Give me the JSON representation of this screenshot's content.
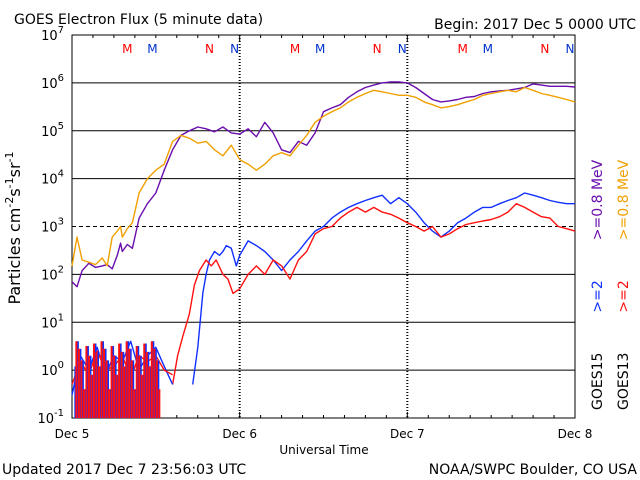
{
  "header": {
    "title": "GOES Electron Flux (5 minute data)",
    "begin": "Begin: 2017 Dec 5 0000 UTC"
  },
  "footer": {
    "updated": "Updated 2017 Dec  7 23:56:03 UTC",
    "credit": "NOAA/SWPC Boulder, CO USA"
  },
  "colors": {
    "goes15_2mev": "#1030ff",
    "goes13_2mev": "#ff1010",
    "goes15_08mev": "#6a0dad",
    "goes13_08mev": "#f0a000",
    "marker_m": "#ff0000",
    "marker_n": "#0033cc"
  },
  "chart_data": {
    "type": "line",
    "title": "GOES Electron Flux (5 minute data)",
    "xlabel": "Universal Time",
    "ylabel": "Particles cm-2s-1sr-1",
    "ylabel_parts": {
      "main": "Particles cm",
      "sup1": "-2",
      "mid1": "s",
      "sup2": "-1",
      "mid2": "sr",
      "sup3": "-1"
    },
    "yscale": "log",
    "ylim": [
      0.1,
      10000000
    ],
    "xlim": [
      0,
      3
    ],
    "x_unit": "days since 2017 Dec 5 0000 UTC",
    "y_ticks": [
      {
        "base": "10",
        "exp": "-1"
      },
      {
        "base": "10",
        "exp": "0"
      },
      {
        "base": "10",
        "exp": "1"
      },
      {
        "base": "10",
        "exp": "2"
      },
      {
        "base": "10",
        "exp": "3"
      },
      {
        "base": "10",
        "exp": "4"
      },
      {
        "base": "10",
        "exp": "5"
      },
      {
        "base": "10",
        "exp": "6"
      },
      {
        "base": "10",
        "exp": "7"
      }
    ],
    "x_tick_labels": [
      "Dec 5",
      "Dec 6",
      "Dec 7",
      "Dec 8"
    ],
    "dashed_threshold": 1000,
    "legend": {
      "group1": [
        {
          "text": ">=0.8  MeV",
          "color": "#6a0dad"
        },
        {
          "text": ">=2",
          "color": "#1030ff"
        },
        {
          "text": "GOES15",
          "color": "#000000"
        }
      ],
      "group2": [
        {
          "text": ">=0.8  MeV",
          "color": "#f0a000"
        },
        {
          "text": ">=2",
          "color": "#ff1010"
        },
        {
          "text": "GOES13",
          "color": "#000000"
        }
      ]
    },
    "markers": [
      {
        "label": "M",
        "x": 0.33,
        "sat": "GOES13"
      },
      {
        "label": "M",
        "x": 0.48,
        "sat": "GOES15"
      },
      {
        "label": "N",
        "x": 0.82,
        "sat": "GOES13"
      },
      {
        "label": "N",
        "x": 0.97,
        "sat": "GOES15"
      },
      {
        "label": "M",
        "x": 1.33,
        "sat": "GOES13"
      },
      {
        "label": "M",
        "x": 1.48,
        "sat": "GOES15"
      },
      {
        "label": "N",
        "x": 1.82,
        "sat": "GOES13"
      },
      {
        "label": "N",
        "x": 1.97,
        "sat": "GOES15"
      },
      {
        "label": "M",
        "x": 2.33,
        "sat": "GOES13"
      },
      {
        "label": "M",
        "x": 2.48,
        "sat": "GOES15"
      },
      {
        "label": "N",
        "x": 2.82,
        "sat": "GOES13"
      },
      {
        "label": "N",
        "x": 2.97,
        "sat": "GOES15"
      }
    ],
    "series": [
      {
        "name": "GOES15 >=0.8 MeV",
        "color": "#6a0dad",
        "x": [
          0,
          0.03,
          0.06,
          0.1,
          0.14,
          0.18,
          0.21,
          0.24,
          0.27,
          0.29,
          0.3,
          0.33,
          0.36,
          0.4,
          0.45,
          0.5,
          0.55,
          0.6,
          0.65,
          0.7,
          0.75,
          0.8,
          0.85,
          0.9,
          0.95,
          1.0,
          1.05,
          1.1,
          1.15,
          1.2,
          1.25,
          1.3,
          1.35,
          1.4,
          1.45,
          1.5,
          1.55,
          1.6,
          1.65,
          1.7,
          1.75,
          1.8,
          1.85,
          1.9,
          1.95,
          2.0,
          2.05,
          2.1,
          2.15,
          2.2,
          2.25,
          2.3,
          2.35,
          2.4,
          2.45,
          2.5,
          2.55,
          2.6,
          2.65,
          2.7,
          2.75,
          2.8,
          2.85,
          2.9,
          2.95,
          3.0
        ],
        "y": [
          70,
          55,
          120,
          170,
          140,
          150,
          160,
          130,
          250,
          450,
          300,
          420,
          350,
          1500,
          3000,
          5000,
          15000,
          40000,
          80000,
          100000,
          120000,
          110000,
          95000,
          120000,
          90000,
          85000,
          110000,
          75000,
          150000,
          90000,
          40000,
          35000,
          60000,
          50000,
          90000,
          250000,
          300000,
          350000,
          500000,
          650000,
          800000,
          900000,
          1000000,
          1050000,
          1050000,
          1000000,
          800000,
          600000,
          450000,
          400000,
          420000,
          450000,
          500000,
          520000,
          600000,
          650000,
          680000,
          700000,
          750000,
          800000,
          950000,
          900000,
          850000,
          850000,
          850000,
          820000
        ]
      },
      {
        "name": "GOES13 >=0.8 MeV",
        "color": "#f0a000",
        "x": [
          0,
          0.03,
          0.06,
          0.1,
          0.14,
          0.18,
          0.21,
          0.24,
          0.27,
          0.29,
          0.3,
          0.33,
          0.36,
          0.4,
          0.45,
          0.5,
          0.55,
          0.6,
          0.65,
          0.7,
          0.75,
          0.8,
          0.85,
          0.9,
          0.95,
          1.0,
          1.05,
          1.1,
          1.15,
          1.2,
          1.25,
          1.3,
          1.35,
          1.4,
          1.45,
          1.5,
          1.55,
          1.6,
          1.65,
          1.7,
          1.75,
          1.8,
          1.85,
          1.9,
          1.95,
          2.0,
          2.05,
          2.1,
          2.15,
          2.2,
          2.25,
          2.3,
          2.35,
          2.4,
          2.45,
          2.5,
          2.55,
          2.6,
          2.65,
          2.7,
          2.75,
          2.8,
          2.85,
          2.9,
          2.95,
          3.0
        ],
        "y": [
          150,
          600,
          200,
          180,
          160,
          220,
          150,
          600,
          800,
          1000,
          600,
          900,
          1200,
          5000,
          10000,
          15000,
          20000,
          60000,
          80000,
          70000,
          55000,
          60000,
          40000,
          30000,
          50000,
          25000,
          20000,
          15000,
          20000,
          30000,
          35000,
          30000,
          50000,
          80000,
          150000,
          200000,
          250000,
          300000,
          400000,
          500000,
          600000,
          700000,
          650000,
          600000,
          550000,
          550000,
          500000,
          400000,
          350000,
          300000,
          320000,
          350000,
          400000,
          450000,
          550000,
          600000,
          650000,
          700000,
          650000,
          800000,
          700000,
          600000,
          550000,
          500000,
          450000,
          400000
        ]
      },
      {
        "name": "GOES15 >=2 MeV",
        "color": "#1030ff",
        "x": [
          0.72,
          0.75,
          0.78,
          0.8,
          0.82,
          0.85,
          0.88,
          0.9,
          0.92,
          0.95,
          0.98,
          1.0,
          1.05,
          1.1,
          1.15,
          1.2,
          1.25,
          1.3,
          1.35,
          1.4,
          1.45,
          1.5,
          1.55,
          1.6,
          1.65,
          1.7,
          1.75,
          1.8,
          1.85,
          1.9,
          1.95,
          2.0,
          2.05,
          2.1,
          2.15,
          2.2,
          2.25,
          2.3,
          2.35,
          2.4,
          2.45,
          2.5,
          2.55,
          2.6,
          2.65,
          2.7,
          2.75,
          2.8,
          2.85,
          2.9,
          2.95,
          3.0
        ],
        "y": [
          0.5,
          3,
          40,
          100,
          200,
          300,
          250,
          300,
          400,
          350,
          150,
          250,
          500,
          400,
          300,
          200,
          120,
          200,
          300,
          500,
          800,
          1000,
          1500,
          2000,
          2500,
          3000,
          3500,
          4000,
          4500,
          3000,
          4000,
          3000,
          2000,
          1200,
          800,
          600,
          800,
          1200,
          1500,
          2000,
          2500,
          2500,
          3000,
          3500,
          4000,
          5000,
          4500,
          4000,
          3500,
          3200,
          3000,
          3000
        ]
      },
      {
        "name": "GOES13 >=2 MeV",
        "color": "#ff1010",
        "x": [
          0.6,
          0.63,
          0.66,
          0.7,
          0.73,
          0.76,
          0.8,
          0.83,
          0.86,
          0.9,
          0.93,
          0.96,
          1.0,
          1.05,
          1.1,
          1.15,
          1.2,
          1.25,
          1.3,
          1.35,
          1.4,
          1.45,
          1.5,
          1.55,
          1.6,
          1.65,
          1.7,
          1.75,
          1.8,
          1.85,
          1.9,
          1.95,
          2.0,
          2.05,
          2.1,
          2.15,
          2.2,
          2.25,
          2.3,
          2.35,
          2.4,
          2.45,
          2.5,
          2.55,
          2.6,
          2.65,
          2.7,
          2.75,
          2.8,
          2.85,
          2.9,
          2.95,
          3.0
        ],
        "y": [
          0.5,
          2,
          5,
          15,
          60,
          120,
          200,
          150,
          200,
          100,
          80,
          40,
          50,
          100,
          150,
          100,
          200,
          150,
          80,
          200,
          300,
          700,
          900,
          1000,
          1500,
          2000,
          2500,
          2000,
          2500,
          2000,
          1800,
          1500,
          1200,
          1000,
          800,
          1000,
          600,
          700,
          900,
          1100,
          1200,
          1300,
          1400,
          1600,
          2000,
          3000,
          2500,
          2000,
          1600,
          1500,
          1000,
          900,
          800
        ]
      },
      {
        "name": "GOES15 >=2 MeV low",
        "color": "#1030ff",
        "x": [
          0.0,
          0.05,
          0.1,
          0.15,
          0.2,
          0.25,
          0.3,
          0.35,
          0.4,
          0.45,
          0.5,
          0.55,
          0.6
        ],
        "y": [
          0.3,
          2,
          1,
          3,
          0.8,
          2,
          1.5,
          4,
          1,
          2,
          3,
          1.2,
          0.5
        ]
      },
      {
        "name": "GOES13 >=2 MeV low",
        "color": "#ff1010",
        "x": [
          0.0,
          0.05,
          0.1,
          0.15,
          0.2,
          0.25,
          0.3,
          0.35,
          0.4,
          0.45,
          0.5,
          0.55,
          0.6
        ],
        "y": [
          0.5,
          1.5,
          0.8,
          2.5,
          1,
          1.2,
          2,
          0.7,
          2,
          1.5,
          2,
          1,
          0.8
        ]
      }
    ]
  }
}
